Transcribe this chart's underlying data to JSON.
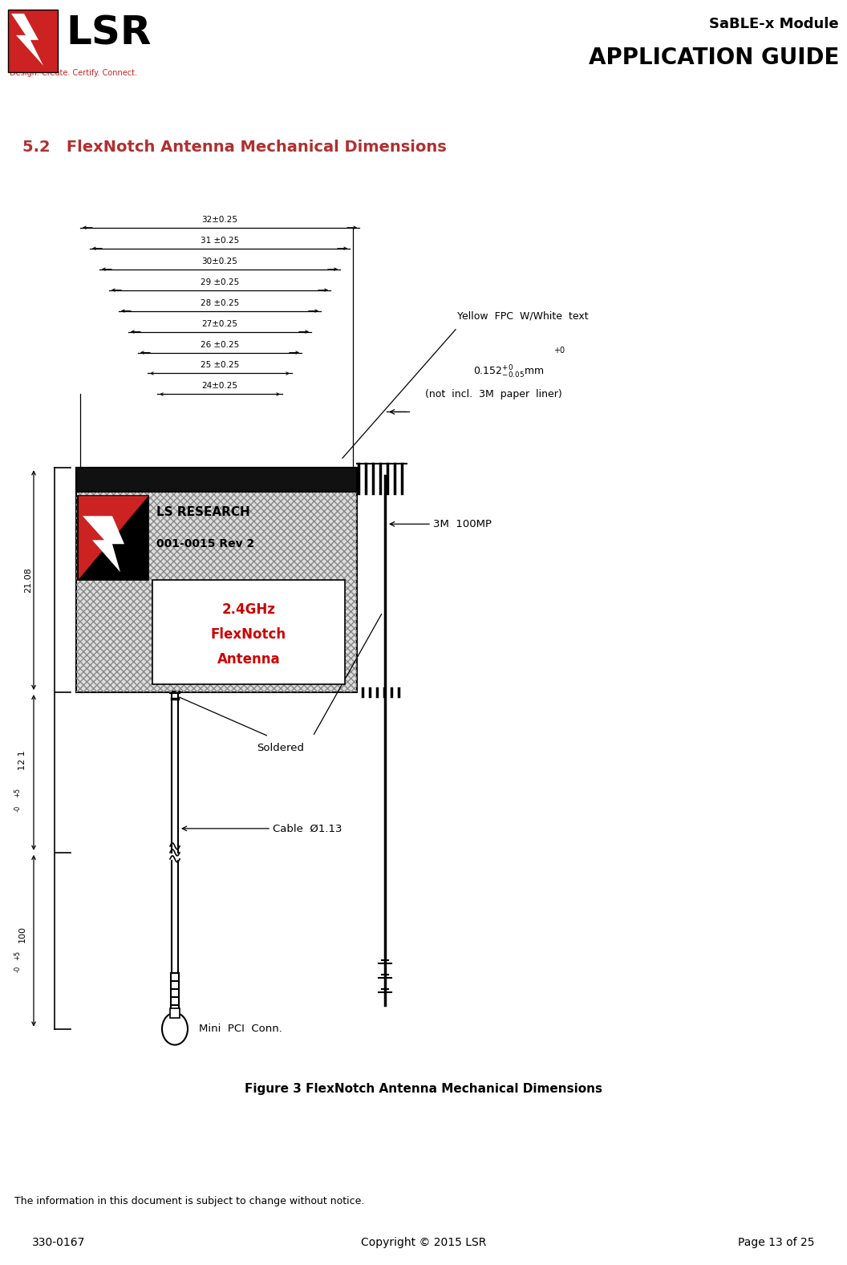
{
  "page_width": 10.56,
  "page_height": 15.77,
  "bg_color": "#ffffff",
  "title_line1": "SaBLE-x Module",
  "title_line2": "APPLICATION GUIDE",
  "section_title": "5.2   FlexNotch Antenna Mechanical Dimensions",
  "section_title_color": "#b03030",
  "figure_caption": "Figure 3 FlexNotch Antenna Mechanical Dimensions",
  "footer_line1": "The information in this document is subject to change without notice.",
  "footer_left": "330-0167",
  "footer_center": "Copyright © 2015 LSR",
  "footer_right": "Page 13 of 25",
  "dim_labels": [
    "32±0.25",
    "31 ±0.25",
    "30±0.25",
    "29 ±0.25",
    "28 ±0.25",
    "27±0.25",
    "26 ±0.25",
    "25 ±0.25",
    "24±0.25"
  ],
  "logo_red": "#cc2222",
  "ant_hatch_color": "#aaaaaa",
  "text_red": "#cc0000"
}
